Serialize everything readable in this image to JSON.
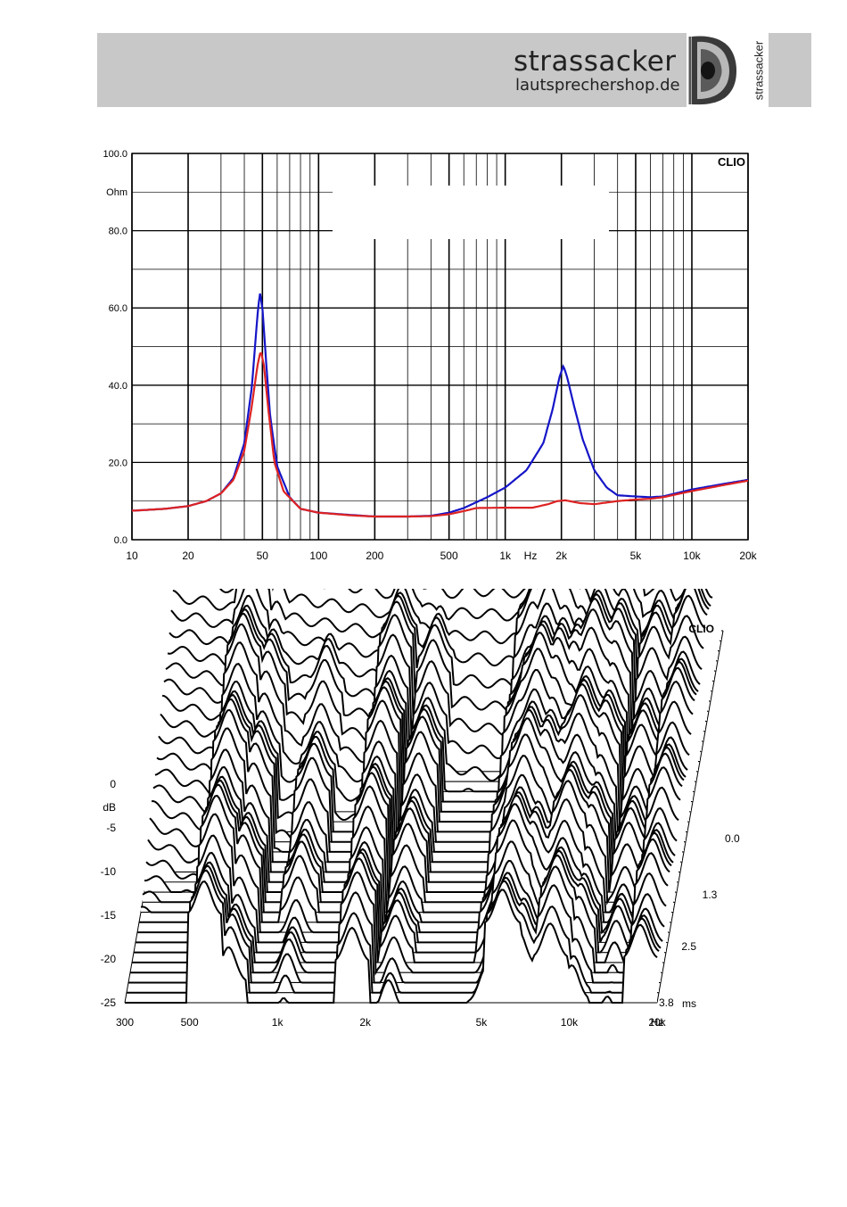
{
  "header": {
    "brand_name": "strassacker",
    "brand_url": "lautsprechershop.de",
    "brand_vertical": "strassacker"
  },
  "chart_data": [
    {
      "type": "line",
      "watermark": "CLIO",
      "xlabel": "Hz",
      "ylabel": "Ohm",
      "x_scale": "log",
      "xlim": [
        10,
        20000
      ],
      "ylim": [
        0,
        100
      ],
      "grid": true,
      "x_tick_labels": [
        {
          "value": 10,
          "label": "10"
        },
        {
          "value": 20,
          "label": "20"
        },
        {
          "value": 50,
          "label": "50"
        },
        {
          "value": 100,
          "label": "100"
        },
        {
          "value": 200,
          "label": "200"
        },
        {
          "value": 500,
          "label": "500"
        },
        {
          "value": 1000,
          "label": "1k"
        },
        {
          "value": 2000,
          "label": "2k"
        },
        {
          "value": 5000,
          "label": "5k"
        },
        {
          "value": 10000,
          "label": "10k"
        },
        {
          "value": 20000,
          "label": "20k"
        }
      ],
      "y_tick_labels": [
        {
          "value": 100,
          "label": "100.0"
        },
        {
          "value": 80,
          "label": "80.0"
        },
        {
          "value": 60,
          "label": "60.0"
        },
        {
          "value": 40,
          "label": "40.0"
        },
        {
          "value": 20,
          "label": "20.0"
        },
        {
          "value": 0,
          "label": "0.0"
        }
      ],
      "series": [
        {
          "color": "#1515c8",
          "points": [
            [
              10,
              7.5
            ],
            [
              15,
              8
            ],
            [
              20,
              8.7
            ],
            [
              25,
              10
            ],
            [
              30,
              12
            ],
            [
              35,
              16
            ],
            [
              40,
              25
            ],
            [
              44,
              40
            ],
            [
              47,
              58
            ],
            [
              48.5,
              64
            ],
            [
              50,
              60
            ],
            [
              52,
              48
            ],
            [
              55,
              32
            ],
            [
              60,
              19
            ],
            [
              70,
              11
            ],
            [
              80,
              8
            ],
            [
              100,
              7
            ],
            [
              150,
              6.4
            ],
            [
              200,
              6
            ],
            [
              300,
              6
            ],
            [
              400,
              6.2
            ],
            [
              500,
              7
            ],
            [
              600,
              8.2
            ],
            [
              800,
              11
            ],
            [
              1000,
              13.5
            ],
            [
              1300,
              18
            ],
            [
              1600,
              25
            ],
            [
              1800,
              34
            ],
            [
              1950,
              42
            ],
            [
              2050,
              45
            ],
            [
              2150,
              42
            ],
            [
              2300,
              36
            ],
            [
              2600,
              26
            ],
            [
              3000,
              18
            ],
            [
              3500,
              13.5
            ],
            [
              4000,
              11.5
            ],
            [
              5000,
              11.2
            ],
            [
              6000,
              11
            ],
            [
              7000,
              11.2
            ],
            [
              10000,
              13
            ],
            [
              15000,
              14.5
            ],
            [
              20000,
              15.5
            ]
          ]
        },
        {
          "color": "#dd2222",
          "points": [
            [
              10,
              7.5
            ],
            [
              15,
              8
            ],
            [
              20,
              8.7
            ],
            [
              25,
              10
            ],
            [
              30,
              12
            ],
            [
              35,
              15.5
            ],
            [
              40,
              23
            ],
            [
              44,
              35
            ],
            [
              47,
              45
            ],
            [
              49,
              49
            ],
            [
              51,
              45
            ],
            [
              54,
              33
            ],
            [
              58,
              20
            ],
            [
              65,
              12.5
            ],
            [
              80,
              8
            ],
            [
              100,
              7
            ],
            [
              150,
              6.3
            ],
            [
              200,
              6
            ],
            [
              300,
              6
            ],
            [
              400,
              6.1
            ],
            [
              500,
              6.6
            ],
            [
              600,
              7.4
            ],
            [
              700,
              8.2
            ],
            [
              1000,
              8.3
            ],
            [
              1400,
              8.3
            ],
            [
              1700,
              9.2
            ],
            [
              1900,
              10
            ],
            [
              2100,
              10.2
            ],
            [
              2500,
              9.5
            ],
            [
              3000,
              9.2
            ],
            [
              4000,
              10
            ],
            [
              5000,
              10.4
            ],
            [
              6000,
              10.6
            ],
            [
              7000,
              11
            ],
            [
              10000,
              12.6
            ],
            [
              15000,
              14.2
            ],
            [
              20000,
              15.3
            ]
          ]
        }
      ]
    },
    {
      "type": "waterfall",
      "watermark": "CLIO",
      "xlabel": "Hz",
      "ylabel": "dB",
      "zlabel": "ms",
      "x_scale": "log",
      "xlim": [
        300,
        20000
      ],
      "ylim": [
        -25,
        0
      ],
      "zlim": [
        0,
        3.8
      ],
      "x_tick_labels": [
        {
          "value": 300,
          "label": "300"
        },
        {
          "value": 500,
          "label": "500"
        },
        {
          "value": 1000,
          "label": "1k"
        },
        {
          "value": 2000,
          "label": "2k"
        },
        {
          "value": 5000,
          "label": "5k"
        },
        {
          "value": 10000,
          "label": "10k"
        },
        {
          "value": 20000,
          "label": "20k"
        }
      ],
      "y_tick_labels": [
        {
          "value": 0,
          "label": "0"
        },
        {
          "value": -5,
          "label": "-5"
        },
        {
          "value": -10,
          "label": "-10"
        },
        {
          "value": -15,
          "label": "-15"
        },
        {
          "value": -20,
          "label": "-20"
        },
        {
          "value": -25,
          "label": "-25"
        }
      ],
      "z_tick_labels": [
        {
          "value": 0.0,
          "label": "0.0"
        },
        {
          "value": 1.3,
          "label": "1.3"
        },
        {
          "value": 2.5,
          "label": "2.5"
        },
        {
          "value": 3.8,
          "label": "3.8"
        }
      ],
      "slice_count": 38,
      "initial_response": [
        [
          300,
          -1
        ],
        [
          500,
          -1.2
        ],
        [
          700,
          -1.3
        ],
        [
          1000,
          -1.3
        ],
        [
          1500,
          -1.4
        ],
        [
          2000,
          -2.2
        ],
        [
          2500,
          -3.2
        ],
        [
          3000,
          -2.5
        ],
        [
          4000,
          -2.3
        ],
        [
          5000,
          -1.8
        ],
        [
          6000,
          -2.4
        ],
        [
          8000,
          -2.7
        ],
        [
          10000,
          -3
        ],
        [
          15000,
          -3.4
        ],
        [
          20000,
          -3.3
        ]
      ]
    }
  ]
}
